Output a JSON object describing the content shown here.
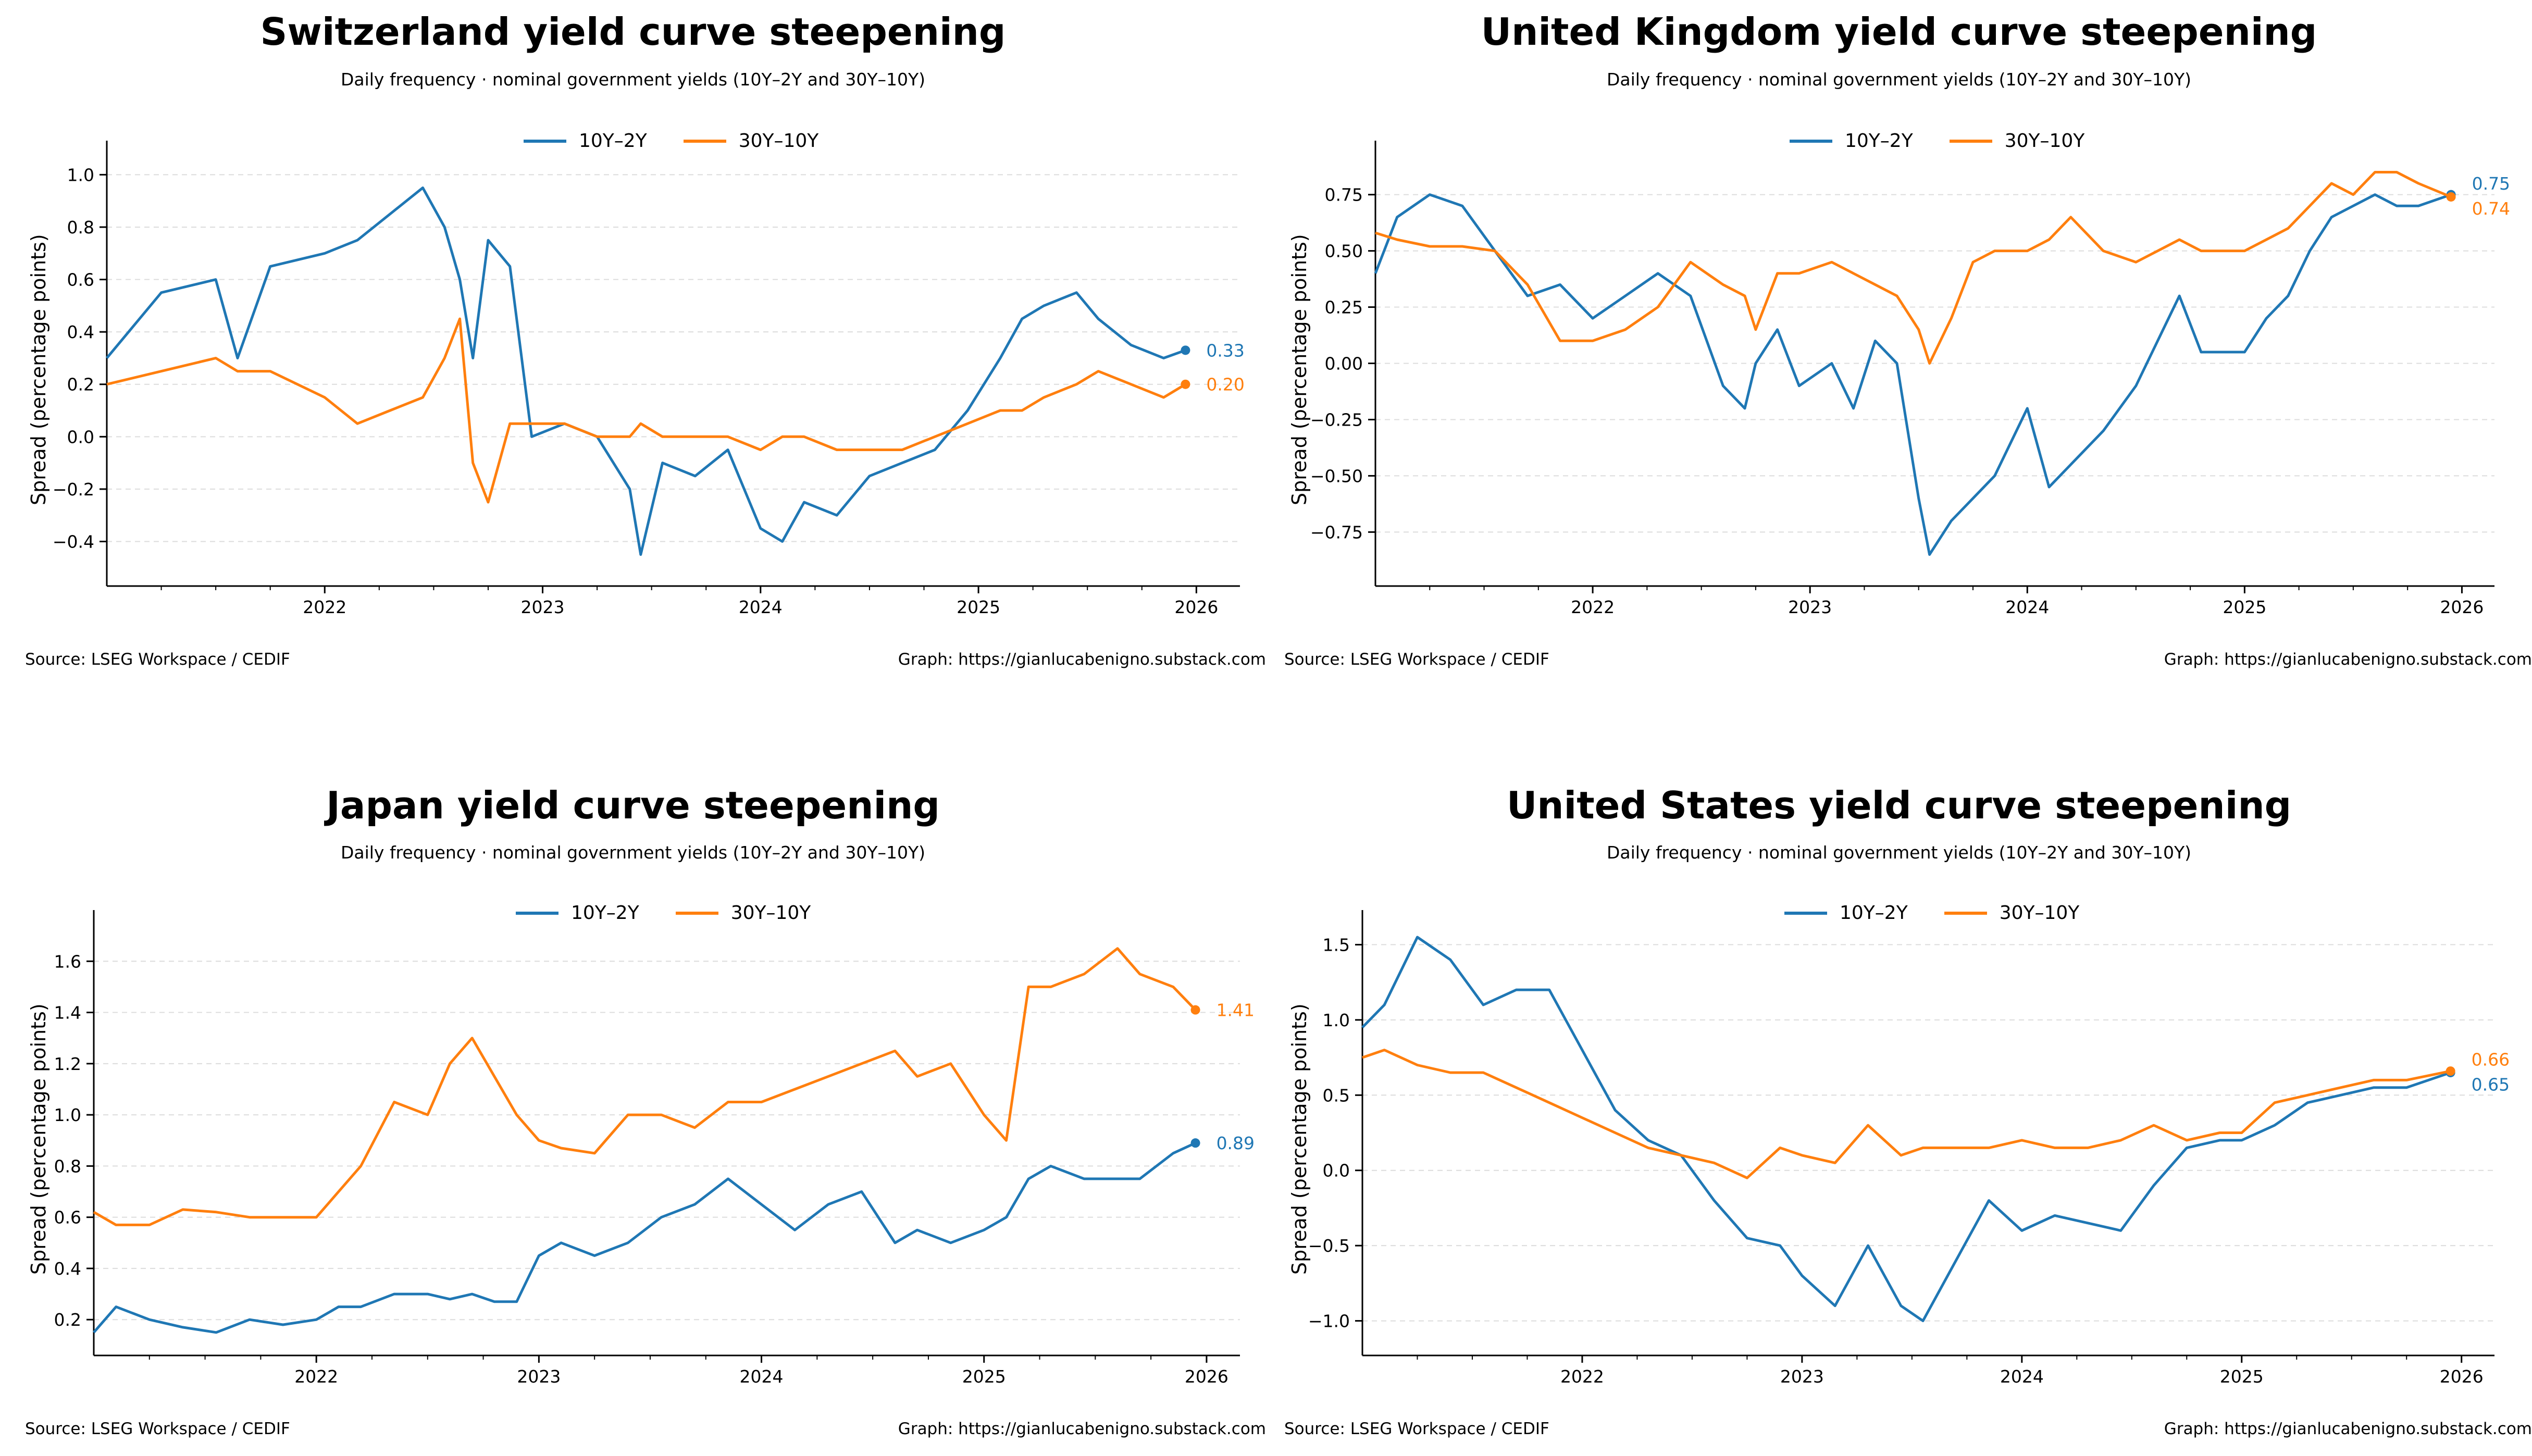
{
  "colors": {
    "s10y2y": "#1f77b4",
    "s30y10y": "#ff7f0e",
    "grid": "#dcdcdc"
  },
  "legend": {
    "s10y2y": "10Y–2Y",
    "s30y10y": "30Y–10Y"
  },
  "panels": [
    {
      "title": "Switzerland yield curve steepening",
      "subtitle": "Daily frequency · nominal government yields (10Y–2Y and 30Y–10Y)",
      "ylabel": "Spread (percentage points)",
      "source": "Source: LSEG Workspace / CEDIF",
      "graph": "Graph: https://gianlucabenigno.substack.com"
    },
    {
      "title": "United Kingdom yield curve steepening",
      "subtitle": "Daily frequency · nominal government yields (10Y–2Y and 30Y–10Y)",
      "ylabel": "Spread (percentage points)",
      "source": "Source: LSEG Workspace / CEDIF",
      "graph": "Graph: https://gianlucabenigno.substack.com"
    },
    {
      "title": "Japan yield curve steepening",
      "subtitle": "Daily frequency · nominal government yields (10Y–2Y and 30Y–10Y)",
      "ylabel": "Spread (percentage points)",
      "source": "Source: LSEG Workspace / CEDIF",
      "graph": "Graph: https://gianlucabenigno.substack.com"
    },
    {
      "title": "United States yield curve steepening",
      "subtitle": "Daily frequency · nominal government yields (10Y–2Y and 30Y–10Y)",
      "ylabel": "Spread (percentage points)",
      "source": "Source: LSEG Workspace / CEDIF",
      "graph": "Graph: https://gianlucabenigno.substack.com"
    }
  ],
  "chart_data": [
    {
      "type": "line",
      "title": "Switzerland yield curve steepening",
      "subtitle": "Daily frequency · nominal government yields (10Y–2Y and 30Y–10Y)",
      "ylabel": "Spread (percentage points)",
      "xlim": [
        2021.0,
        2026.2
      ],
      "ylim": [
        -0.57,
        1.13
      ],
      "xticks": [
        2022,
        2023,
        2024,
        2025,
        2026
      ],
      "xtick_labels": [
        "2022",
        "2023",
        "2024",
        "2025",
        "2026"
      ],
      "yticks": [
        -0.4,
        -0.2,
        0.0,
        0.2,
        0.4,
        0.6,
        0.8,
        1.0
      ],
      "ytick_labels": [
        "−0.4",
        "−0.2",
        "0.0",
        "0.2",
        "0.4",
        "0.6",
        "0.8",
        "1.0"
      ],
      "grid": "horizontal dashed",
      "legend": "top-center",
      "x": [
        2021.0,
        2021.25,
        2021.5,
        2021.6,
        2021.75,
        2022.0,
        2022.15,
        2022.3,
        2022.45,
        2022.55,
        2022.62,
        2022.68,
        2022.75,
        2022.85,
        2022.95,
        2023.1,
        2023.25,
        2023.4,
        2023.45,
        2023.55,
        2023.7,
        2023.85,
        2024.0,
        2024.1,
        2024.2,
        2024.35,
        2024.5,
        2024.65,
        2024.8,
        2024.95,
        2025.1,
        2025.2,
        2025.3,
        2025.45,
        2025.55,
        2025.7,
        2025.85,
        2025.95
      ],
      "series": [
        {
          "name": "10Y–2Y",
          "values": [
            0.3,
            0.55,
            0.6,
            0.3,
            0.65,
            0.7,
            0.75,
            0.85,
            0.95,
            0.8,
            0.6,
            0.3,
            0.75,
            0.65,
            0.0,
            0.05,
            0.0,
            -0.2,
            -0.45,
            -0.1,
            -0.15,
            -0.05,
            -0.35,
            -0.4,
            -0.25,
            -0.3,
            -0.15,
            -0.1,
            -0.05,
            0.1,
            0.3,
            0.45,
            0.5,
            0.55,
            0.45,
            0.35,
            0.3,
            0.33
          ]
        },
        {
          "name": "30Y–10Y",
          "values": [
            0.2,
            0.25,
            0.3,
            0.25,
            0.25,
            0.15,
            0.05,
            0.1,
            0.15,
            0.3,
            0.45,
            -0.1,
            -0.25,
            0.05,
            0.05,
            0.05,
            0.0,
            0.0,
            0.05,
            0.0,
            0.0,
            0.0,
            -0.05,
            0.0,
            0.0,
            -0.05,
            -0.05,
            -0.05,
            0.0,
            0.05,
            0.1,
            0.1,
            0.15,
            0.2,
            0.25,
            0.2,
            0.15,
            0.2
          ]
        }
      ],
      "end_labels": [
        "0.33",
        "0.20"
      ]
    },
    {
      "type": "line",
      "title": "United Kingdom yield curve steepening",
      "subtitle": "Daily frequency · nominal government yields (10Y–2Y and 30Y–10Y)",
      "ylabel": "Spread (percentage points)",
      "xlim": [
        2021.0,
        2026.15
      ],
      "ylim": [
        -0.99,
        0.99
      ],
      "xticks": [
        2022,
        2023,
        2024,
        2025,
        2026
      ],
      "xtick_labels": [
        "2022",
        "2023",
        "2024",
        "2025",
        "2026"
      ],
      "yticks": [
        -0.75,
        -0.5,
        -0.25,
        0.0,
        0.25,
        0.5,
        0.75
      ],
      "ytick_labels": [
        "−0.75",
        "−0.50",
        "−0.25",
        "0.00",
        "0.25",
        "0.50",
        "0.75"
      ],
      "grid": "horizontal dashed",
      "legend": "top-center",
      "x": [
        2021.0,
        2021.1,
        2021.25,
        2021.4,
        2021.55,
        2021.7,
        2021.85,
        2022.0,
        2022.15,
        2022.3,
        2022.45,
        2022.6,
        2022.7,
        2022.75,
        2022.85,
        2022.95,
        2023.1,
        2023.2,
        2023.3,
        2023.4,
        2023.5,
        2023.55,
        2023.65,
        2023.75,
        2023.85,
        2024.0,
        2024.1,
        2024.2,
        2024.35,
        2024.5,
        2024.6,
        2024.7,
        2024.8,
        2025.0,
        2025.1,
        2025.2,
        2025.3,
        2025.4,
        2025.5,
        2025.6,
        2025.7,
        2025.8,
        2025.95
      ],
      "series": [
        {
          "name": "10Y–2Y",
          "values": [
            0.4,
            0.65,
            0.75,
            0.7,
            0.5,
            0.3,
            0.35,
            0.2,
            0.3,
            0.4,
            0.3,
            -0.1,
            -0.2,
            0.0,
            0.15,
            -0.1,
            0.0,
            -0.2,
            0.1,
            0.0,
            -0.6,
            -0.85,
            -0.7,
            -0.6,
            -0.5,
            -0.2,
            -0.55,
            -0.45,
            -0.3,
            -0.1,
            0.1,
            0.3,
            0.05,
            0.05,
            0.2,
            0.3,
            0.5,
            0.65,
            0.7,
            0.75,
            0.7,
            0.7,
            0.75
          ]
        },
        {
          "name": "30Y–10Y",
          "values": [
            0.58,
            0.55,
            0.52,
            0.52,
            0.5,
            0.35,
            0.1,
            0.1,
            0.15,
            0.25,
            0.45,
            0.35,
            0.3,
            0.15,
            0.4,
            0.4,
            0.45,
            0.4,
            0.35,
            0.3,
            0.15,
            0.0,
            0.2,
            0.45,
            0.5,
            0.5,
            0.55,
            0.65,
            0.5,
            0.45,
            0.5,
            0.55,
            0.5,
            0.5,
            0.55,
            0.6,
            0.7,
            0.8,
            0.75,
            0.85,
            0.85,
            0.8,
            0.74
          ]
        }
      ],
      "end_labels": [
        "0.75",
        "0.74"
      ]
    },
    {
      "type": "line",
      "title": "Japan yield curve steepening",
      "subtitle": "Daily frequency · nominal government yields (10Y–2Y and 30Y–10Y)",
      "ylabel": "Spread (percentage points)",
      "xlim": [
        2021.0,
        2026.15
      ],
      "ylim": [
        0.06,
        1.8
      ],
      "xticks": [
        2022,
        2023,
        2024,
        2025,
        2026
      ],
      "xtick_labels": [
        "2022",
        "2023",
        "2024",
        "2025",
        "2026"
      ],
      "yticks": [
        0.2,
        0.4,
        0.6,
        0.8,
        1.0,
        1.2,
        1.4,
        1.6
      ],
      "ytick_labels": [
        "0.2",
        "0.4",
        "0.6",
        "0.8",
        "1.0",
        "1.2",
        "1.4",
        "1.6"
      ],
      "grid": "horizontal dashed",
      "legend": "top-center",
      "x": [
        2021.0,
        2021.1,
        2021.25,
        2021.4,
        2021.55,
        2021.7,
        2021.85,
        2022.0,
        2022.1,
        2022.2,
        2022.35,
        2022.5,
        2022.6,
        2022.7,
        2022.8,
        2022.9,
        2023.0,
        2023.1,
        2023.25,
        2023.4,
        2023.55,
        2023.7,
        2023.85,
        2024.0,
        2024.15,
        2024.3,
        2024.45,
        2024.6,
        2024.7,
        2024.85,
        2025.0,
        2025.1,
        2025.2,
        2025.3,
        2025.45,
        2025.6,
        2025.7,
        2025.85,
        2025.95
      ],
      "series": [
        {
          "name": "10Y–2Y",
          "values": [
            0.15,
            0.25,
            0.2,
            0.17,
            0.15,
            0.2,
            0.18,
            0.2,
            0.25,
            0.25,
            0.3,
            0.3,
            0.28,
            0.3,
            0.27,
            0.27,
            0.45,
            0.5,
            0.45,
            0.5,
            0.6,
            0.65,
            0.75,
            0.65,
            0.55,
            0.65,
            0.7,
            0.5,
            0.55,
            0.5,
            0.55,
            0.6,
            0.75,
            0.8,
            0.75,
            0.75,
            0.75,
            0.85,
            0.89
          ]
        },
        {
          "name": "30Y–10Y",
          "values": [
            0.62,
            0.57,
            0.57,
            0.63,
            0.62,
            0.6,
            0.6,
            0.6,
            0.7,
            0.8,
            1.05,
            1.0,
            1.2,
            1.3,
            1.15,
            1.0,
            0.9,
            0.87,
            0.85,
            1.0,
            1.0,
            0.95,
            1.05,
            1.05,
            1.1,
            1.15,
            1.2,
            1.25,
            1.15,
            1.2,
            1.0,
            0.9,
            1.5,
            1.5,
            1.55,
            1.65,
            1.55,
            1.5,
            1.41
          ]
        }
      ],
      "end_labels": [
        "0.89",
        "1.41"
      ]
    },
    {
      "type": "line",
      "title": "United States yield curve steepening",
      "subtitle": "Daily frequency · nominal government yields (10Y–2Y and 30Y–10Y)",
      "ylabel": "Spread (percentage points)",
      "xlim": [
        2021.0,
        2026.15
      ],
      "ylim": [
        -1.23,
        1.73
      ],
      "xticks": [
        2022,
        2023,
        2024,
        2025,
        2026
      ],
      "xtick_labels": [
        "2022",
        "2023",
        "2024",
        "2025",
        "2026"
      ],
      "yticks": [
        -1.0,
        -0.5,
        0.0,
        0.5,
        1.0,
        1.5
      ],
      "ytick_labels": [
        "−1.0",
        "−0.5",
        "0.0",
        "0.5",
        "1.0",
        "1.5"
      ],
      "grid": "horizontal dashed",
      "legend": "top-center",
      "x": [
        2021.0,
        2021.1,
        2021.25,
        2021.4,
        2021.55,
        2021.7,
        2021.85,
        2022.0,
        2022.15,
        2022.3,
        2022.45,
        2022.6,
        2022.75,
        2022.9,
        2023.0,
        2023.15,
        2023.3,
        2023.45,
        2023.55,
        2023.7,
        2023.85,
        2024.0,
        2024.15,
        2024.3,
        2024.45,
        2024.6,
        2024.75,
        2024.9,
        2025.0,
        2025.15,
        2025.3,
        2025.45,
        2025.6,
        2025.75,
        2025.95
      ],
      "series": [
        {
          "name": "10Y–2Y",
          "values": [
            0.95,
            1.1,
            1.55,
            1.4,
            1.1,
            1.2,
            1.2,
            0.8,
            0.4,
            0.2,
            0.1,
            -0.2,
            -0.45,
            -0.5,
            -0.7,
            -0.9,
            -0.5,
            -0.9,
            -1.0,
            -0.6,
            -0.2,
            -0.4,
            -0.3,
            -0.35,
            -0.4,
            -0.1,
            0.15,
            0.2,
            0.2,
            0.3,
            0.45,
            0.5,
            0.55,
            0.55,
            0.65
          ]
        },
        {
          "name": "30Y–10Y",
          "values": [
            0.75,
            0.8,
            0.7,
            0.65,
            0.65,
            0.55,
            0.45,
            0.35,
            0.25,
            0.15,
            0.1,
            0.05,
            -0.05,
            0.15,
            0.1,
            0.05,
            0.3,
            0.1,
            0.15,
            0.15,
            0.15,
            0.2,
            0.15,
            0.15,
            0.2,
            0.3,
            0.2,
            0.25,
            0.25,
            0.45,
            0.5,
            0.55,
            0.6,
            0.6,
            0.66
          ]
        }
      ],
      "end_labels": [
        "0.65",
        "0.66"
      ]
    }
  ]
}
